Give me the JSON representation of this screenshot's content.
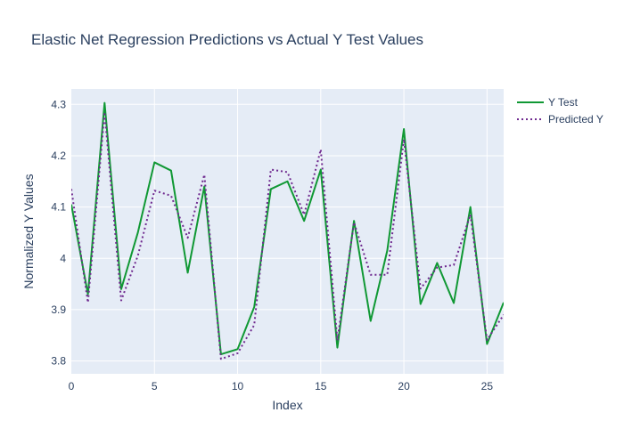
{
  "chart_data": {
    "type": "line",
    "title": "Elastic Net Regression Predictions vs Actual Y Test Values",
    "xlabel": "Index",
    "ylabel": "Normalized Y Values",
    "xlim": [
      0,
      26
    ],
    "ylim": [
      3.775,
      4.33
    ],
    "xticks": [
      0,
      5,
      10,
      15,
      20,
      25
    ],
    "xtick_labels": [
      "0",
      "5",
      "10",
      "15",
      "20",
      "25"
    ],
    "yticks": [
      3.8,
      3.9,
      4.0,
      4.1,
      4.2,
      4.3
    ],
    "ytick_labels": [
      "3.8",
      "3.9",
      "4",
      "4.1",
      "4.2",
      "4.3"
    ],
    "grid": true,
    "legend_position": "top-right",
    "plot_bgcolor": "#E5ECF6",
    "x": [
      0,
      1,
      2,
      3,
      4,
      5,
      6,
      7,
      8,
      9,
      10,
      11,
      12,
      13,
      14,
      15,
      16,
      17,
      18,
      19,
      20,
      21,
      22,
      23,
      24,
      25,
      26
    ],
    "series": [
      {
        "name": "Y Test",
        "color": "#109834",
        "dash": "solid",
        "values": [
          4.105,
          3.93,
          4.303,
          3.94,
          4.05,
          4.187,
          4.171,
          3.972,
          4.14,
          3.813,
          3.823,
          3.905,
          4.135,
          4.15,
          4.073,
          4.173,
          3.826,
          4.073,
          3.878,
          4.015,
          4.252,
          3.911,
          3.991,
          3.913,
          4.1,
          3.833,
          3.914
        ]
      },
      {
        "name": "Predicted Y",
        "color": "#6f2a8f",
        "dash": "dot",
        "values": [
          4.135,
          3.914,
          4.285,
          3.918,
          4.005,
          4.132,
          4.122,
          4.04,
          4.163,
          3.804,
          3.815,
          3.87,
          4.173,
          4.168,
          4.085,
          4.212,
          3.84,
          4.07,
          3.968,
          3.968,
          4.232,
          3.941,
          3.982,
          3.987,
          4.085,
          3.841,
          3.89
        ]
      }
    ]
  }
}
